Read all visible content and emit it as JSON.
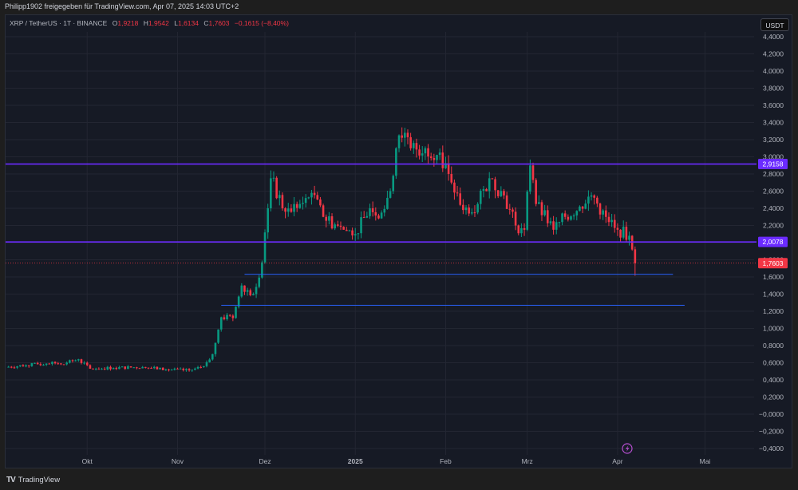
{
  "header": {
    "share_text": "Philipp1902 freigegeben für TradingView.com, Apr 07, 2025 14:03 UTC+2"
  },
  "legend": {
    "symbol": "XRP / TetherUS · 1T · BINANCE",
    "open_label": "O",
    "open": "1,9218",
    "high_label": "H",
    "high": "1,9542",
    "low_label": "L",
    "low": "1,6134",
    "close_label": "C",
    "close": "1,7603",
    "change": "−0,1615 (−8,40%)"
  },
  "currency_button": "USDT",
  "footer": {
    "logo_text": "TradingView",
    "logo_icon": "tradingview-logo-icon"
  },
  "colors": {
    "background": "#161a25",
    "grid": "#232632",
    "up": "#089981",
    "down": "#f23645",
    "resistance_line": "#6b2bff",
    "support_line": "#2962ff",
    "axis_text": "#b2b5be"
  },
  "chart_data": {
    "type": "candlestick",
    "title": "XRP / TetherUS · 1T · BINANCE",
    "xlabel": "",
    "ylabel": "USDT",
    "ylim": [
      -0.4,
      4.4
    ],
    "grid": true,
    "y_ticks": [
      "4,4000",
      "4,2000",
      "4,0000",
      "3,8000",
      "3,6000",
      "3,4000",
      "3,2000",
      "3,0000",
      "2,8000",
      "2,6000",
      "2,4000",
      "2,2000",
      "2,0000",
      "1,8000",
      "1,6000",
      "1,4000",
      "1,2000",
      "1,0000",
      "0,8000",
      "0,6000",
      "0,4000",
      "0,2000",
      "−0,0000",
      "−0,2000",
      "−0,4000"
    ],
    "x_ticks": [
      "Okt",
      "Nov",
      "Dez",
      "2025",
      "Feb",
      "Mrz",
      "Apr",
      "Mai"
    ],
    "price_labels": [
      {
        "value": "2,9158",
        "price": 2.9158,
        "color": "#6b2bff",
        "type": "horizontal_line"
      },
      {
        "value": "2,0078",
        "price": 2.0078,
        "color": "#6b2bff",
        "type": "horizontal_line"
      },
      {
        "value": "1,7603",
        "price": 1.7603,
        "color": "#f23645",
        "type": "last_price"
      }
    ],
    "horizontal_rays": [
      {
        "price": 1.63,
        "start": "2024-11-24",
        "end": "2025-04-20",
        "color": "#2962ff"
      },
      {
        "price": 1.27,
        "start": "2024-11-16",
        "end": "2025-04-24",
        "color": "#2962ff"
      }
    ],
    "last_candle": {
      "date": "2025-04-07",
      "open": 1.9218,
      "high": 1.9542,
      "low": 1.6134,
      "close": 1.7603
    },
    "closes_approx": [
      [
        "2024-09-03",
        0.55
      ],
      [
        "2024-09-10",
        0.57
      ],
      [
        "2024-09-17",
        0.59
      ],
      [
        "2024-09-24",
        0.6
      ],
      [
        "2024-09-28",
        0.64
      ],
      [
        "2024-10-02",
        0.53
      ],
      [
        "2024-10-10",
        0.54
      ],
      [
        "2024-10-20",
        0.55
      ],
      [
        "2024-10-28",
        0.52
      ],
      [
        "2024-11-05",
        0.51
      ],
      [
        "2024-11-10",
        0.56
      ],
      [
        "2024-11-13",
        0.7
      ],
      [
        "2024-11-16",
        1.13
      ],
      [
        "2024-11-20",
        1.12
      ],
      [
        "2024-11-23",
        1.5
      ],
      [
        "2024-11-27",
        1.4
      ],
      [
        "2024-11-30",
        1.77
      ],
      [
        "2024-12-02",
        2.4
      ],
      [
        "2024-12-03",
        2.75
      ],
      [
        "2024-12-08",
        2.36
      ],
      [
        "2024-12-13",
        2.45
      ],
      [
        "2024-12-17",
        2.58
      ],
      [
        "2024-12-21",
        2.3
      ],
      [
        "2024-12-28",
        2.15
      ],
      [
        "2025-01-01",
        2.1
      ],
      [
        "2025-01-06",
        2.4
      ],
      [
        "2025-01-10",
        2.35
      ],
      [
        "2025-01-13",
        2.6
      ],
      [
        "2025-01-15",
        3.1
      ],
      [
        "2025-01-16",
        3.25
      ],
      [
        "2025-01-18",
        3.28
      ],
      [
        "2025-01-20",
        3.1
      ],
      [
        "2025-01-25",
        3.1
      ],
      [
        "2025-01-30",
        3.05
      ],
      [
        "2025-02-02",
        2.8
      ],
      [
        "2025-02-03",
        2.7
      ],
      [
        "2025-02-07",
        2.38
      ],
      [
        "2025-02-12",
        2.45
      ],
      [
        "2025-02-16",
        2.75
      ],
      [
        "2025-02-21",
        2.55
      ],
      [
        "2025-02-25",
        2.2
      ],
      [
        "2025-02-28",
        2.15
      ],
      [
        "2025-03-02",
        2.9
      ],
      [
        "2025-03-04",
        2.45
      ],
      [
        "2025-03-10",
        2.15
      ],
      [
        "2025-03-14",
        2.3
      ],
      [
        "2025-03-19",
        2.42
      ],
      [
        "2025-03-23",
        2.55
      ],
      [
        "2025-03-28",
        2.3
      ],
      [
        "2025-04-01",
        2.15
      ],
      [
        "2025-04-05",
        2.08
      ],
      [
        "2025-04-06",
        1.92
      ],
      [
        "2025-04-07",
        1.7603
      ]
    ]
  }
}
